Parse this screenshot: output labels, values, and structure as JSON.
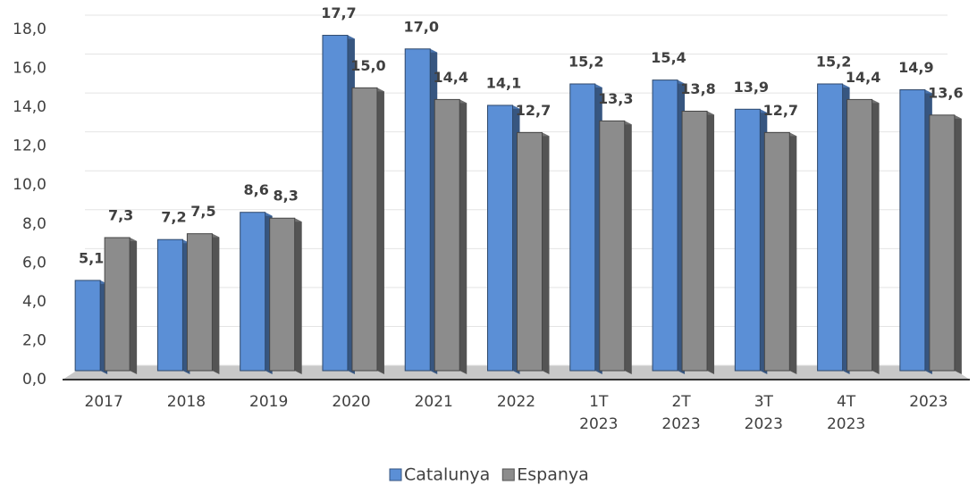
{
  "chart_data": {
    "type": "bar3d",
    "categories": [
      "2017",
      "2018",
      "2019",
      "2020",
      "2021",
      "2022",
      [
        "1T",
        "2023"
      ],
      [
        "2T",
        "2023"
      ],
      [
        "3T",
        "2023"
      ],
      [
        "4T",
        "2023"
      ],
      "2023"
    ],
    "series": [
      {
        "name": "Catalunya",
        "color": "#5b8fd6",
        "values": [
          5.1,
          7.2,
          8.6,
          17.7,
          17.0,
          14.1,
          15.2,
          15.4,
          13.9,
          15.2,
          14.9
        ],
        "value_labels": [
          "5,1",
          "7,2",
          "8,6",
          "17,7",
          "17,0",
          "14,1",
          "15,2",
          "15,4",
          "13,9",
          "15,2",
          "14,9"
        ]
      },
      {
        "name": "Espanya",
        "color": "#8c8c8c",
        "values": [
          7.3,
          7.5,
          8.3,
          15.0,
          14.4,
          12.7,
          13.3,
          13.8,
          12.7,
          14.4,
          13.6
        ],
        "value_labels": [
          "7,3",
          "7,5",
          "8,3",
          "15,0",
          "14,4",
          "12,7",
          "13,3",
          "13,8",
          "12,7",
          "14,4",
          "13,6"
        ]
      }
    ],
    "ylim": [
      0,
      18
    ],
    "yticks": [
      {
        "value": 0,
        "label": "0,0"
      },
      {
        "value": 2,
        "label": "2,0"
      },
      {
        "value": 4,
        "label": "4,0"
      },
      {
        "value": 6,
        "label": "6,0"
      },
      {
        "value": 8,
        "label": "8,0"
      },
      {
        "value": 10,
        "label": "10,0"
      },
      {
        "value": 12,
        "label": "12,0"
      },
      {
        "value": 14,
        "label": "14,0"
      },
      {
        "value": 16,
        "label": "16,0"
      },
      {
        "value": 18,
        "label": "18,0"
      }
    ],
    "grid": true,
    "legend": "bottom"
  }
}
